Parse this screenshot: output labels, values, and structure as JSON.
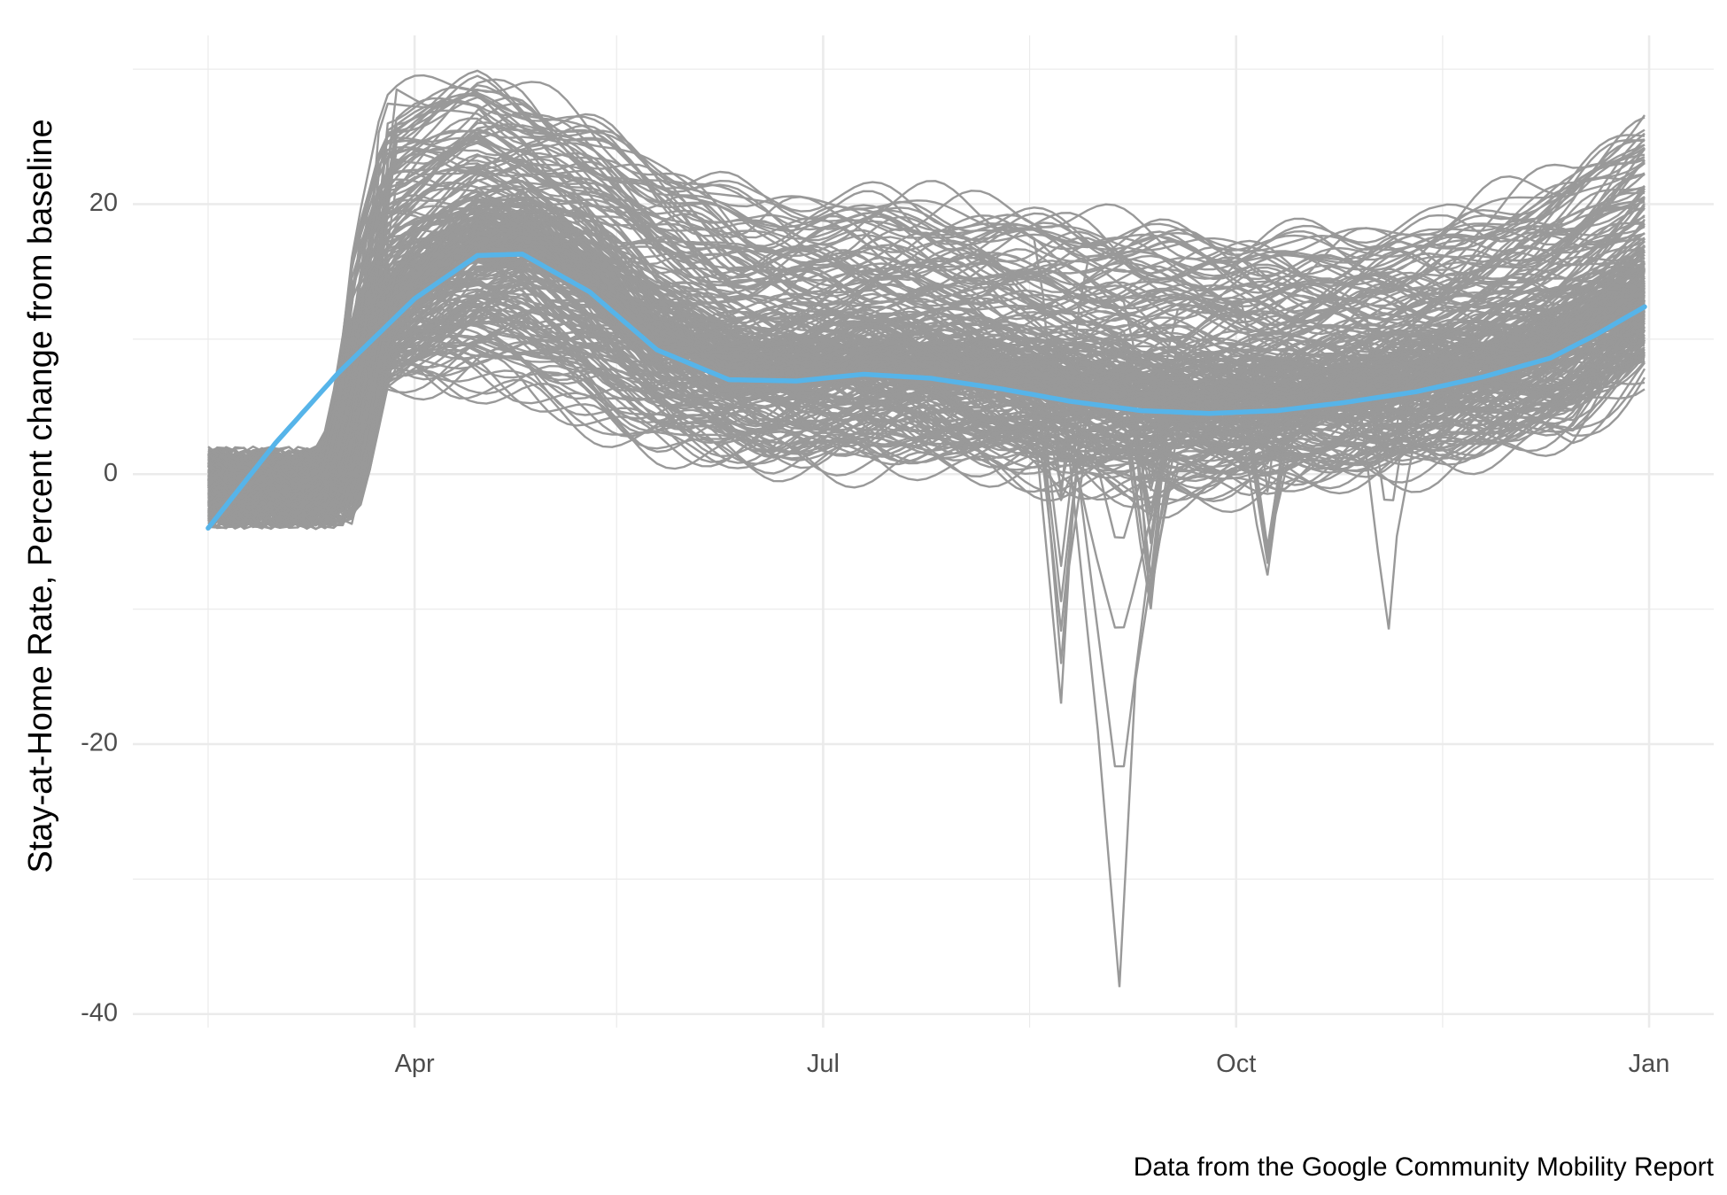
{
  "chart_data": {
    "type": "line",
    "ylabel": "Stay-at-Home Rate, Percent change from baseline",
    "caption": "Data from the Google Community Mobility Report",
    "x_range": [
      "2020-02-15",
      "2020-12-31"
    ],
    "ylim": [
      -41,
      32.5
    ],
    "x_ticks": [
      {
        "label": "Apr",
        "date": "2020-04-01"
      },
      {
        "label": "Jul",
        "date": "2020-07-01"
      },
      {
        "label": "Oct",
        "date": "2020-10-01"
      },
      {
        "label": "Jan",
        "date": "2021-01-01"
      }
    ],
    "y_ticks": [
      {
        "label": "20",
        "value": 20
      },
      {
        "label": "0",
        "value": 0
      },
      {
        "label": "-20",
        "value": -20
      },
      {
        "label": "-40",
        "value": -40
      }
    ],
    "y_minor_ticks": [
      30,
      10,
      -10,
      -30
    ],
    "x_minor_ticks": [
      "2020-02-15",
      "2020-05-16",
      "2020-08-16",
      "2020-11-16"
    ],
    "grid": true,
    "colors": {
      "series": "#999999",
      "trend": "#56B4E9",
      "grid": "#ebebeb"
    },
    "series_summary": {
      "description": "hundreds of county-level daily series, drawn in grey",
      "lower_envelope": [
        {
          "x": "2020-02-15",
          "y": -1
        },
        {
          "x": "2020-02-27",
          "y": -3.5
        },
        {
          "x": "2020-03-12",
          "y": -3
        },
        {
          "x": "2020-03-25",
          "y": 6
        },
        {
          "x": "2020-04-20",
          "y": 5
        },
        {
          "x": "2020-05-20",
          "y": 2
        },
        {
          "x": "2020-06-20",
          "y": 0
        },
        {
          "x": "2020-07-20",
          "y": 0
        },
        {
          "x": "2020-08-15",
          "y": -1
        },
        {
          "x": "2020-09-15",
          "y": -2
        },
        {
          "x": "2020-10-15",
          "y": -1
        },
        {
          "x": "2020-11-15",
          "y": 0
        },
        {
          "x": "2020-12-15",
          "y": 2
        },
        {
          "x": "2020-12-31",
          "y": 7
        }
      ],
      "upper_envelope": [
        {
          "x": "2020-02-15",
          "y": 5
        },
        {
          "x": "2020-03-12",
          "y": 10
        },
        {
          "x": "2020-03-25",
          "y": 30
        },
        {
          "x": "2020-04-15",
          "y": 31
        },
        {
          "x": "2020-05-15",
          "y": 27
        },
        {
          "x": "2020-06-15",
          "y": 22
        },
        {
          "x": "2020-07-15",
          "y": 22
        },
        {
          "x": "2020-08-15",
          "y": 21
        },
        {
          "x": "2020-09-15",
          "y": 20
        },
        {
          "x": "2020-10-15",
          "y": 19
        },
        {
          "x": "2020-11-15",
          "y": 20
        },
        {
          "x": "2020-12-15",
          "y": 24
        },
        {
          "x": "2020-12-31",
          "y": 28
        }
      ],
      "notable_dips": [
        {
          "x": "2020-08-23",
          "y": -17
        },
        {
          "x": "2020-09-05",
          "y": -38
        },
        {
          "x": "2020-09-12",
          "y": -10
        },
        {
          "x": "2020-10-08",
          "y": -7.5
        },
        {
          "x": "2020-11-04",
          "y": -11.5
        }
      ]
    },
    "trend": {
      "name": "",
      "points": [
        {
          "x": "2020-02-15",
          "y": -4
        },
        {
          "x": "2020-03-01",
          "y": 2.3
        },
        {
          "x": "2020-03-15",
          "y": 7.5
        },
        {
          "x": "2020-04-01",
          "y": 13
        },
        {
          "x": "2020-04-15",
          "y": 16.2
        },
        {
          "x": "2020-04-25",
          "y": 16.3
        },
        {
          "x": "2020-05-10",
          "y": 13.5
        },
        {
          "x": "2020-05-25",
          "y": 9.2
        },
        {
          "x": "2020-06-10",
          "y": 7
        },
        {
          "x": "2020-06-25",
          "y": 6.9
        },
        {
          "x": "2020-07-10",
          "y": 7.4
        },
        {
          "x": "2020-07-25",
          "y": 7.1
        },
        {
          "x": "2020-08-10",
          "y": 6.3
        },
        {
          "x": "2020-08-25",
          "y": 5.4
        },
        {
          "x": "2020-09-10",
          "y": 4.7
        },
        {
          "x": "2020-09-25",
          "y": 4.5
        },
        {
          "x": "2020-10-10",
          "y": 4.7
        },
        {
          "x": "2020-10-25",
          "y": 5.3
        },
        {
          "x": "2020-11-10",
          "y": 6.1
        },
        {
          "x": "2020-11-25",
          "y": 7.2
        },
        {
          "x": "2020-12-10",
          "y": 8.6
        },
        {
          "x": "2020-12-20",
          "y": 10.3
        },
        {
          "x": "2020-12-31",
          "y": 12.4
        }
      ]
    }
  }
}
